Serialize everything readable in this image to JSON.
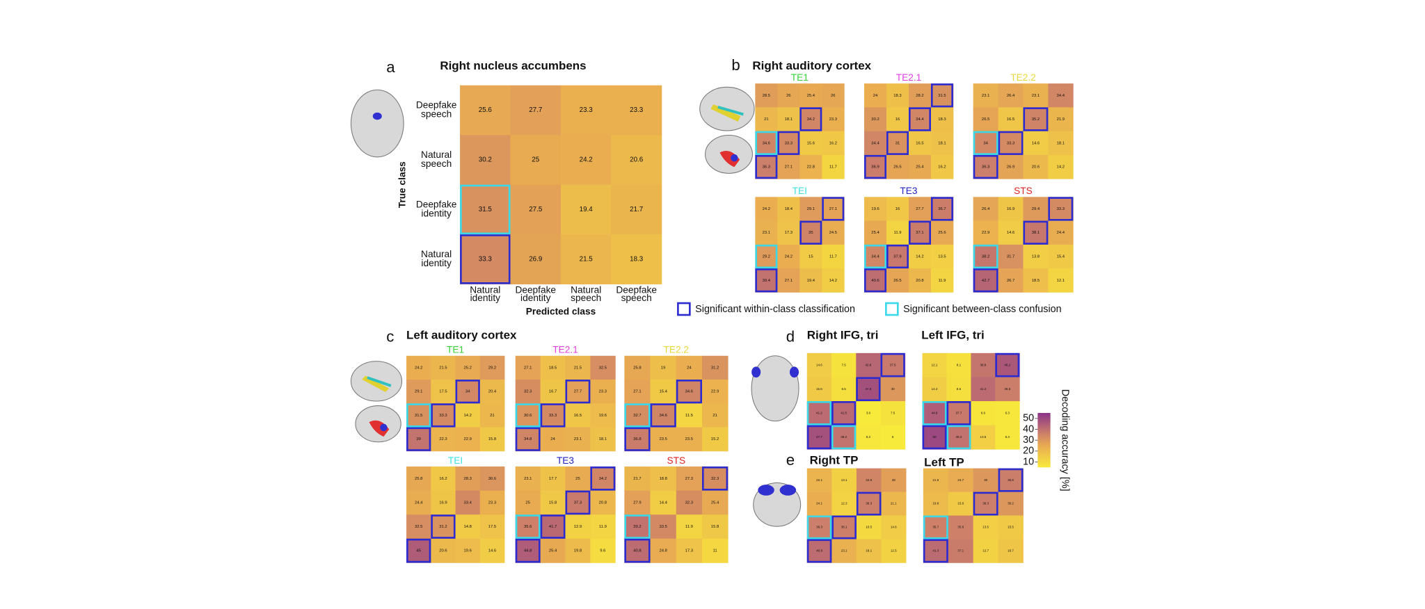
{
  "panels": [
    {
      "letter": "a",
      "title": "Right nucleus accumbens",
      "row_labels": [
        [
          "Deepfake",
          "speech"
        ],
        [
          "Natural",
          "speech"
        ],
        [
          "Deepfake",
          "identity"
        ],
        [
          "Natural",
          "identity"
        ]
      ],
      "col_labels": [
        [
          "Natural",
          "identity"
        ],
        [
          "Deepfake",
          "identity"
        ],
        [
          "Natural",
          "speech"
        ],
        [
          "Deepfake",
          "speech"
        ]
      ],
      "y_axis_label": "True class",
      "x_axis_label": "Predicted class",
      "matrices": [
        {
          "values": [
            [
              25.6,
              27.7,
              23.3,
              23.3
            ],
            [
              30.2,
              25,
              24.2,
              20.6
            ],
            [
              31.5,
              27.5,
              19.4,
              21.7
            ],
            [
              33.3,
              26.9,
              21.5,
              18.3
            ]
          ],
          "within": [
            [
              3,
              0
            ]
          ],
          "confusion": [
            [
              2,
              0
            ]
          ]
        }
      ]
    },
    {
      "letter": "b",
      "title": "Right auditory cortex",
      "matrices": [
        {
          "name": "TE1",
          "color": "#35d035",
          "values": [
            [
              28.5,
              26,
              25.4,
              26
            ],
            [
              21,
              18.1,
              34.2,
              23.3
            ],
            [
              34.6,
              33.3,
              15.6,
              16.2
            ],
            [
              36.3,
              27.1,
              22.8,
              11.7
            ]
          ],
          "within": [
            [
              1,
              2
            ],
            [
              2,
              1
            ],
            [
              3,
              0
            ]
          ],
          "confusion": [
            [
              2,
              0
            ]
          ]
        },
        {
          "name": "TE2.1",
          "color": "#e03ee0",
          "values": [
            [
              24,
              18.3,
              28.2,
              31.5
            ],
            [
              30.2,
              16,
              34.4,
              18.3
            ],
            [
              34.4,
              31,
              16.5,
              18.1
            ],
            [
              36.9,
              26.5,
              25.4,
              16.2
            ]
          ],
          "within": [
            [
              0,
              3
            ],
            [
              1,
              2
            ],
            [
              2,
              1
            ],
            [
              3,
              0
            ]
          ],
          "confusion": []
        },
        {
          "name": "TE2.2",
          "color": "#e8d838",
          "values": [
            [
              23.1,
              26.4,
              23.1,
              34.4
            ],
            [
              26.5,
              16.5,
              35.2,
              21.9
            ],
            [
              34,
              33.3,
              14.6,
              18.1
            ],
            [
              36.3,
              26.9,
              20.6,
              14.2
            ]
          ],
          "within": [
            [
              1,
              2
            ],
            [
              2,
              1
            ],
            [
              3,
              0
            ]
          ],
          "confusion": [
            [
              2,
              0
            ]
          ]
        },
        {
          "name": "TEI",
          "color": "#3ee0e0",
          "values": [
            [
              24.2,
              18.4,
              29.1,
              27.1
            ],
            [
              23.1,
              17.3,
              35,
              24.5
            ],
            [
              29.2,
              24.2,
              15,
              11.7
            ],
            [
              39.4,
              27.1,
              19.4,
              14.2
            ]
          ],
          "within": [
            [
              0,
              3
            ],
            [
              1,
              2
            ],
            [
              3,
              0
            ]
          ],
          "confusion": [
            [
              2,
              0
            ]
          ]
        },
        {
          "name": "TE3",
          "color": "#2222c0",
          "values": [
            [
              19.6,
              16,
              27.7,
              36.7
            ],
            [
              25.4,
              11.9,
              37.1,
              25.6
            ],
            [
              34.4,
              37.9,
              14.2,
              13.5
            ],
            [
              40.6,
              26.5,
              20.8,
              11.9
            ]
          ],
          "within": [
            [
              0,
              3
            ],
            [
              1,
              2
            ],
            [
              2,
              1
            ],
            [
              3,
              0
            ]
          ],
          "confusion": [
            [
              2,
              0
            ]
          ]
        },
        {
          "name": "STS",
          "color": "#e02020",
          "values": [
            [
              26.4,
              16.9,
              29.4,
              33.3
            ],
            [
              22.9,
              14.6,
              38.1,
              24.4
            ],
            [
              38.2,
              31.7,
              13.8,
              15.4
            ],
            [
              42.7,
              26.7,
              18.5,
              12.1
            ]
          ],
          "within": [
            [
              0,
              3
            ],
            [
              1,
              2
            ],
            [
              3,
              0
            ]
          ],
          "confusion": [
            [
              2,
              0
            ]
          ]
        }
      ]
    },
    {
      "letter": "c",
      "title": "Left auditory cortex",
      "matrices": [
        {
          "name": "TE1",
          "color": "#35d035",
          "values": [
            [
              24.2,
              21.5,
              25.2,
              29.2
            ],
            [
              29.1,
              17.5,
              34,
              20.4
            ],
            [
              31.5,
              33.3,
              14.2,
              21
            ],
            [
              39,
              22.3,
              22.9,
              15.8
            ]
          ],
          "within": [
            [
              1,
              2
            ],
            [
              2,
              1
            ],
            [
              3,
              0
            ]
          ],
          "confusion": [
            [
              2,
              0
            ]
          ]
        },
        {
          "name": "TE2.1",
          "color": "#e03ee0",
          "values": [
            [
              27.1,
              18.5,
              21.5,
              32.5
            ],
            [
              32.3,
              16.7,
              27.7,
              23.3
            ],
            [
              30.6,
              33.3,
              16.5,
              19.6
            ],
            [
              34.8,
              24,
              23.1,
              18.1
            ]
          ],
          "within": [
            [
              1,
              2
            ],
            [
              2,
              1
            ],
            [
              3,
              0
            ]
          ],
          "confusion": [
            [
              2,
              0
            ]
          ]
        },
        {
          "name": "TE2.2",
          "color": "#e8d838",
          "values": [
            [
              25.8,
              19,
              24,
              31.2
            ],
            [
              27.1,
              15.4,
              34.6,
              22.9
            ],
            [
              32.7,
              34.6,
              11.5,
              21
            ],
            [
              36.8,
              23.5,
              23.5,
              15.2
            ]
          ],
          "within": [
            [
              1,
              2
            ],
            [
              2,
              1
            ],
            [
              3,
              0
            ]
          ],
          "confusion": [
            [
              2,
              0
            ]
          ]
        },
        {
          "name": "TEI",
          "color": "#3ee0e0",
          "values": [
            [
              25.8,
              16.2,
              28.3,
              30.6
            ],
            [
              24.4,
              16.9,
              33.4,
              23.3
            ],
            [
              32.5,
              31.2,
              14.8,
              17.5
            ],
            [
              45,
              20.6,
              19.6,
              14.6
            ]
          ],
          "within": [
            [
              2,
              1
            ],
            [
              3,
              0
            ]
          ],
          "confusion": []
        },
        {
          "name": "TE3",
          "color": "#2222c0",
          "values": [
            [
              23.1,
              17.7,
              25,
              34.2
            ],
            [
              25,
              15.8,
              37.3,
              20.8
            ],
            [
              35.6,
              41.7,
              12.9,
              11.9
            ],
            [
              44.8,
              25.4,
              19.8,
              9.6
            ]
          ],
          "within": [
            [
              0,
              3
            ],
            [
              1,
              2
            ],
            [
              2,
              1
            ],
            [
              3,
              0
            ]
          ],
          "confusion": [
            [
              2,
              0
            ]
          ]
        },
        {
          "name": "STS",
          "color": "#e02020",
          "values": [
            [
              21.7,
              18.8,
              27.3,
              32.3
            ],
            [
              27.9,
              14.4,
              32.3,
              25.4
            ],
            [
              39.2,
              33.5,
              11.9,
              15.8
            ],
            [
              40.8,
              24.8,
              17.3,
              11
            ]
          ],
          "within": [
            [
              0,
              3
            ],
            [
              3,
              0
            ]
          ],
          "confusion": [
            [
              2,
              0
            ]
          ]
        }
      ]
    },
    {
      "letter": "d",
      "matrices": [
        {
          "title": "Right IFG, tri",
          "values": [
            [
              14.6,
              7.5,
              42.6,
              37.5
            ],
            [
              15.6,
              8.5,
              47.9,
              30
            ],
            [
              41.2,
              41.5,
              3.6,
              7.5
            ],
            [
              47.7,
              39.2,
              6.2,
              5
            ]
          ],
          "within": [
            [
              0,
              3
            ],
            [
              1,
              2
            ],
            [
              2,
              1
            ],
            [
              3,
              0
            ]
          ],
          "confusion": [
            [
              2,
              0
            ],
            [
              3,
              1
            ]
          ]
        },
        {
          "title": "Left IFG, tri",
          "values": [
            [
              12.1,
              8.1,
              38.8,
              46.2
            ],
            [
              14.2,
              8.6,
              41.2,
              36.6
            ],
            [
              44.8,
              37.7,
              6.6,
              6.3
            ],
            [
              50,
              39.2,
              13.5,
              6.3
            ]
          ],
          "within": [
            [
              0,
              3
            ],
            [
              2,
              1
            ],
            [
              3,
              0
            ]
          ],
          "confusion": [
            [
              2,
              0
            ],
            [
              3,
              1
            ]
          ]
        }
      ]
    },
    {
      "letter": "e",
      "matrices": [
        {
          "title": "Right TP",
          "values": [
            [
              22.1,
              13.1,
              34.6,
              28
            ],
            [
              24.1,
              12.3,
              36.3,
              21.1
            ],
            [
              36.3,
              36.1,
              10.5,
              14.6
            ],
            [
              40.8,
              23.1,
              18.1,
              12.5
            ]
          ],
          "within": [
            [
              1,
              2
            ],
            [
              2,
              1
            ],
            [
              3,
              0
            ]
          ],
          "confusion": [
            [
              2,
              0
            ]
          ]
        },
        {
          "title": "Left TP",
          "values": [
            [
              21.5,
              24.7,
              30,
              36.6
            ],
            [
              19.8,
              15.6,
              36.3,
              30.2
            ],
            [
              35.7,
              35.6,
              13.5,
              15.5
            ],
            [
              41.3,
              37.1,
              12.7,
              16.7
            ]
          ],
          "within": [
            [
              0,
              3
            ],
            [
              1,
              2
            ],
            [
              3,
              0
            ]
          ],
          "confusion": [
            [
              2,
              0
            ]
          ]
        }
      ]
    }
  ],
  "legend": {
    "within": {
      "label": "Significant within-class classification",
      "color": "#2b2bd0"
    },
    "confusion": {
      "label": "Significant between-class confusion",
      "color": "#3ad8e8"
    }
  },
  "colorbar": {
    "label": "Decoding accuracy [%]",
    "lim": [
      5,
      55
    ],
    "ticks": [
      10,
      20,
      30,
      40,
      50
    ]
  }
}
